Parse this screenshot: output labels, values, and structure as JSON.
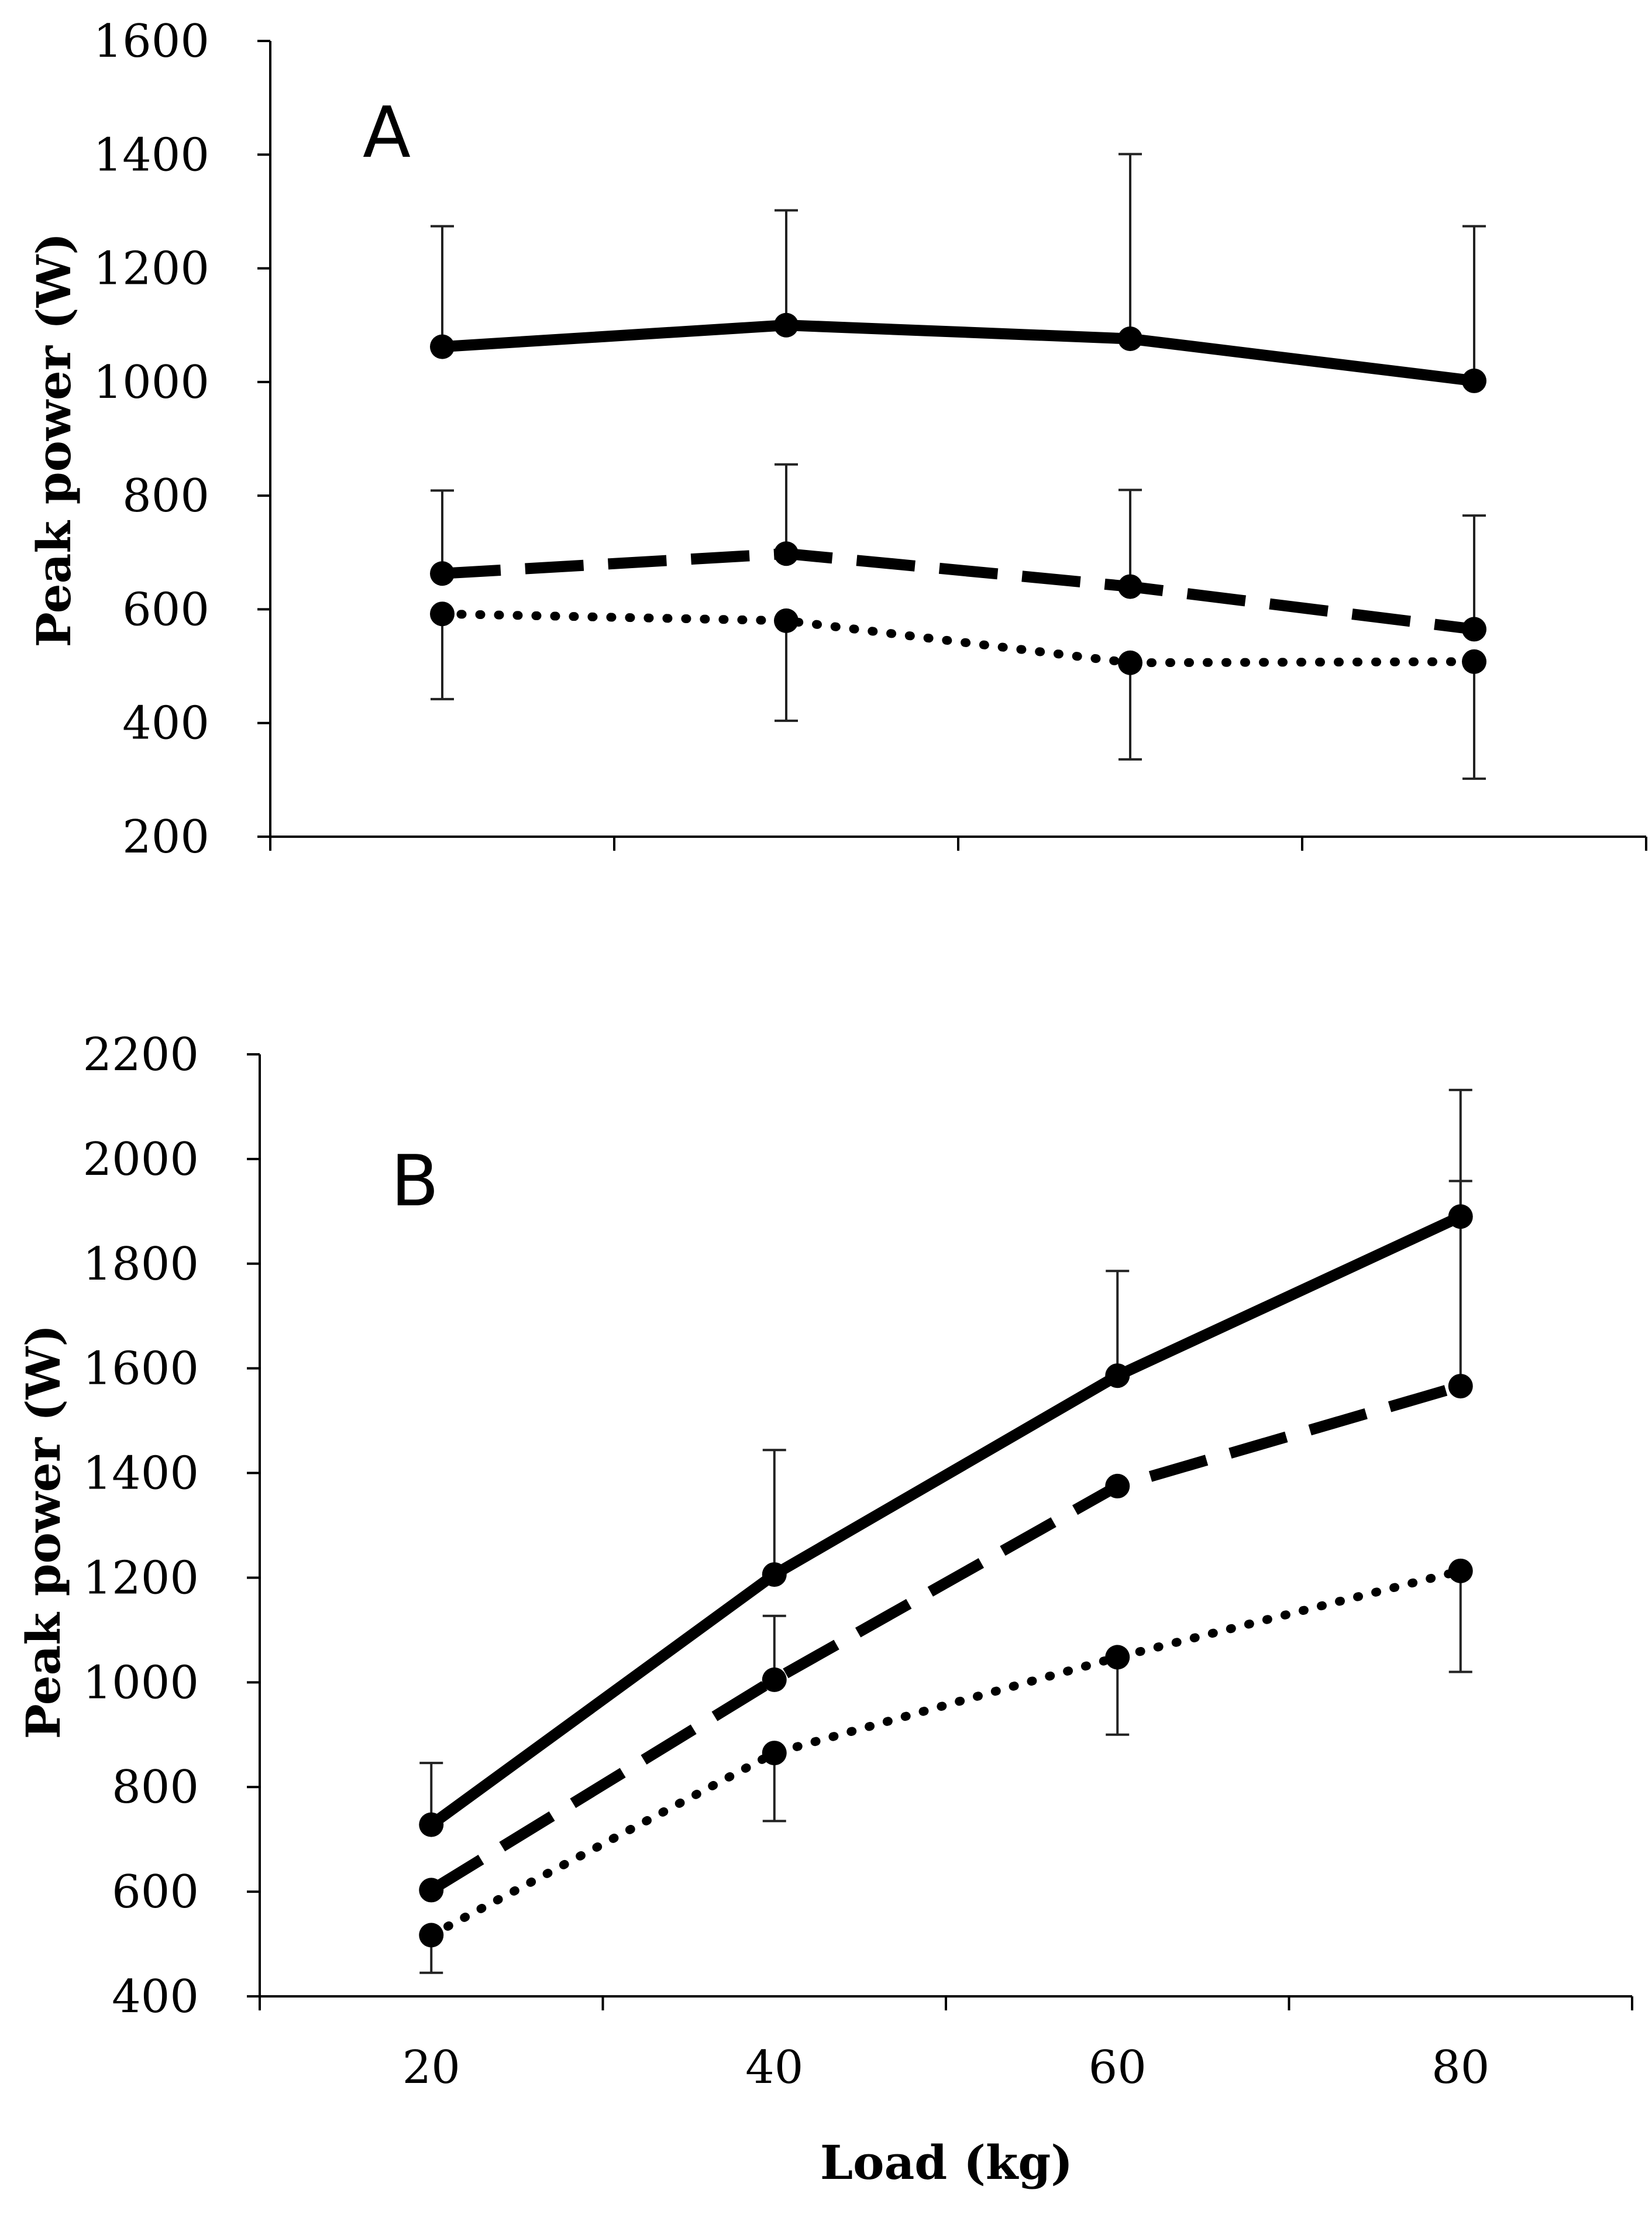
{
  "chart_data": [
    {
      "type": "line",
      "panel": "A",
      "panel_label": "A",
      "ylabel": "Peak power (W)",
      "xlabel": "",
      "ylim": [
        200,
        1600
      ],
      "yticks": [
        200,
        400,
        600,
        800,
        1000,
        1200,
        1400,
        1600
      ],
      "ytick_labels": [
        "200",
        "400",
        "600",
        "800",
        "1000",
        "1200",
        "1400",
        "1600"
      ],
      "x": [
        20,
        40,
        60,
        80
      ],
      "xtick_labels": [],
      "grid": false,
      "series": [
        {
          "name": "solid",
          "style": "solid",
          "values": [
            1062,
            1100,
            1076,
            1002
          ],
          "err_upper": [
            212,
            202,
            325,
            272
          ]
        },
        {
          "name": "dashed",
          "style": "dashed",
          "values": [
            663,
            698,
            640,
            565
          ],
          "err_upper": [
            146,
            157,
            170,
            200
          ]
        },
        {
          "name": "dotted",
          "style": "dotted",
          "values": [
            592,
            580,
            506,
            508
          ],
          "err_lower": [
            150,
            176,
            170,
            206
          ]
        }
      ]
    },
    {
      "type": "line",
      "panel": "B",
      "panel_label": "B",
      "ylabel": "Peak power (W)",
      "xlabel": "Load (kg)",
      "ylim": [
        400,
        2200
      ],
      "yticks": [
        400,
        600,
        800,
        1000,
        1200,
        1400,
        1600,
        1800,
        2000,
        2200
      ],
      "ytick_labels": [
        "400",
        "600",
        "800",
        "1000",
        "1200",
        "1400",
        "1600",
        "1800",
        "2000",
        "2200"
      ],
      "x": [
        20,
        40,
        60,
        80
      ],
      "xtick_labels": [
        "20",
        "40",
        "60",
        "80"
      ],
      "grid": false,
      "series": [
        {
          "name": "solid",
          "style": "solid",
          "values": [
            728,
            1206,
            1586,
            1890
          ],
          "err_upper": [
            118,
            238,
            200,
            242
          ]
        },
        {
          "name": "dashed",
          "style": "dashed",
          "values": [
            603,
            1005,
            1375,
            1566
          ],
          "err_upper": [
            0,
            122,
            0,
            392
          ]
        },
        {
          "name": "dotted",
          "style": "dotted",
          "values": [
            517,
            865,
            1048,
            1213
          ],
          "err_lower": [
            72,
            130,
            148,
            193
          ]
        }
      ]
    }
  ]
}
